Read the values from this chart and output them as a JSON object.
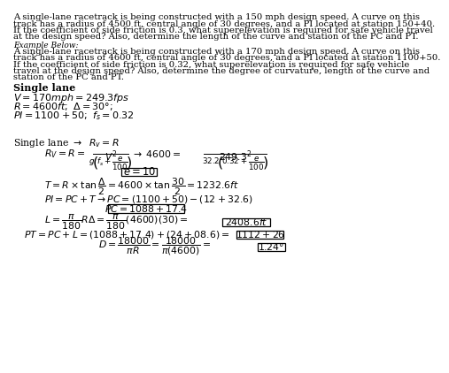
{
  "bg_color": "#ffffff",
  "problem_text_1": "A single-lane racetrack is being constructed with a 150 mph design speed. A curve on this",
  "problem_text_2": "track has a radius of 4500 ft, central angle of 30 degrees, and a PI located at station 150+40.",
  "problem_text_3": "If the coefficient of side friction is 0.3, what superelevation is required for safe vehicle travel",
  "problem_text_4": "at the design speed? Also, determine the length of the curve and station of the PC and PT.",
  "example_label": "Example Below:",
  "example_1": "A single-lane racetrack is being constructed with a 170 mph design speed. A curve on this",
  "example_2": "track has a radius of 4600 ft, central angle of 30 degrees, and a PI located at station 1100+50.",
  "example_3": "If the coefficient of side friction is 0.32, what superelevation is required for safe vehicle",
  "example_4": "travel at the design speed? Also, determine the degree of curvature, length of the curve and",
  "example_5": "station of the PC and PT.",
  "single_lane": "Single lane",
  "fs_body": 7.2,
  "fs_example_label": 6.5,
  "fs_given": 8.0,
  "fs_math": 7.8
}
